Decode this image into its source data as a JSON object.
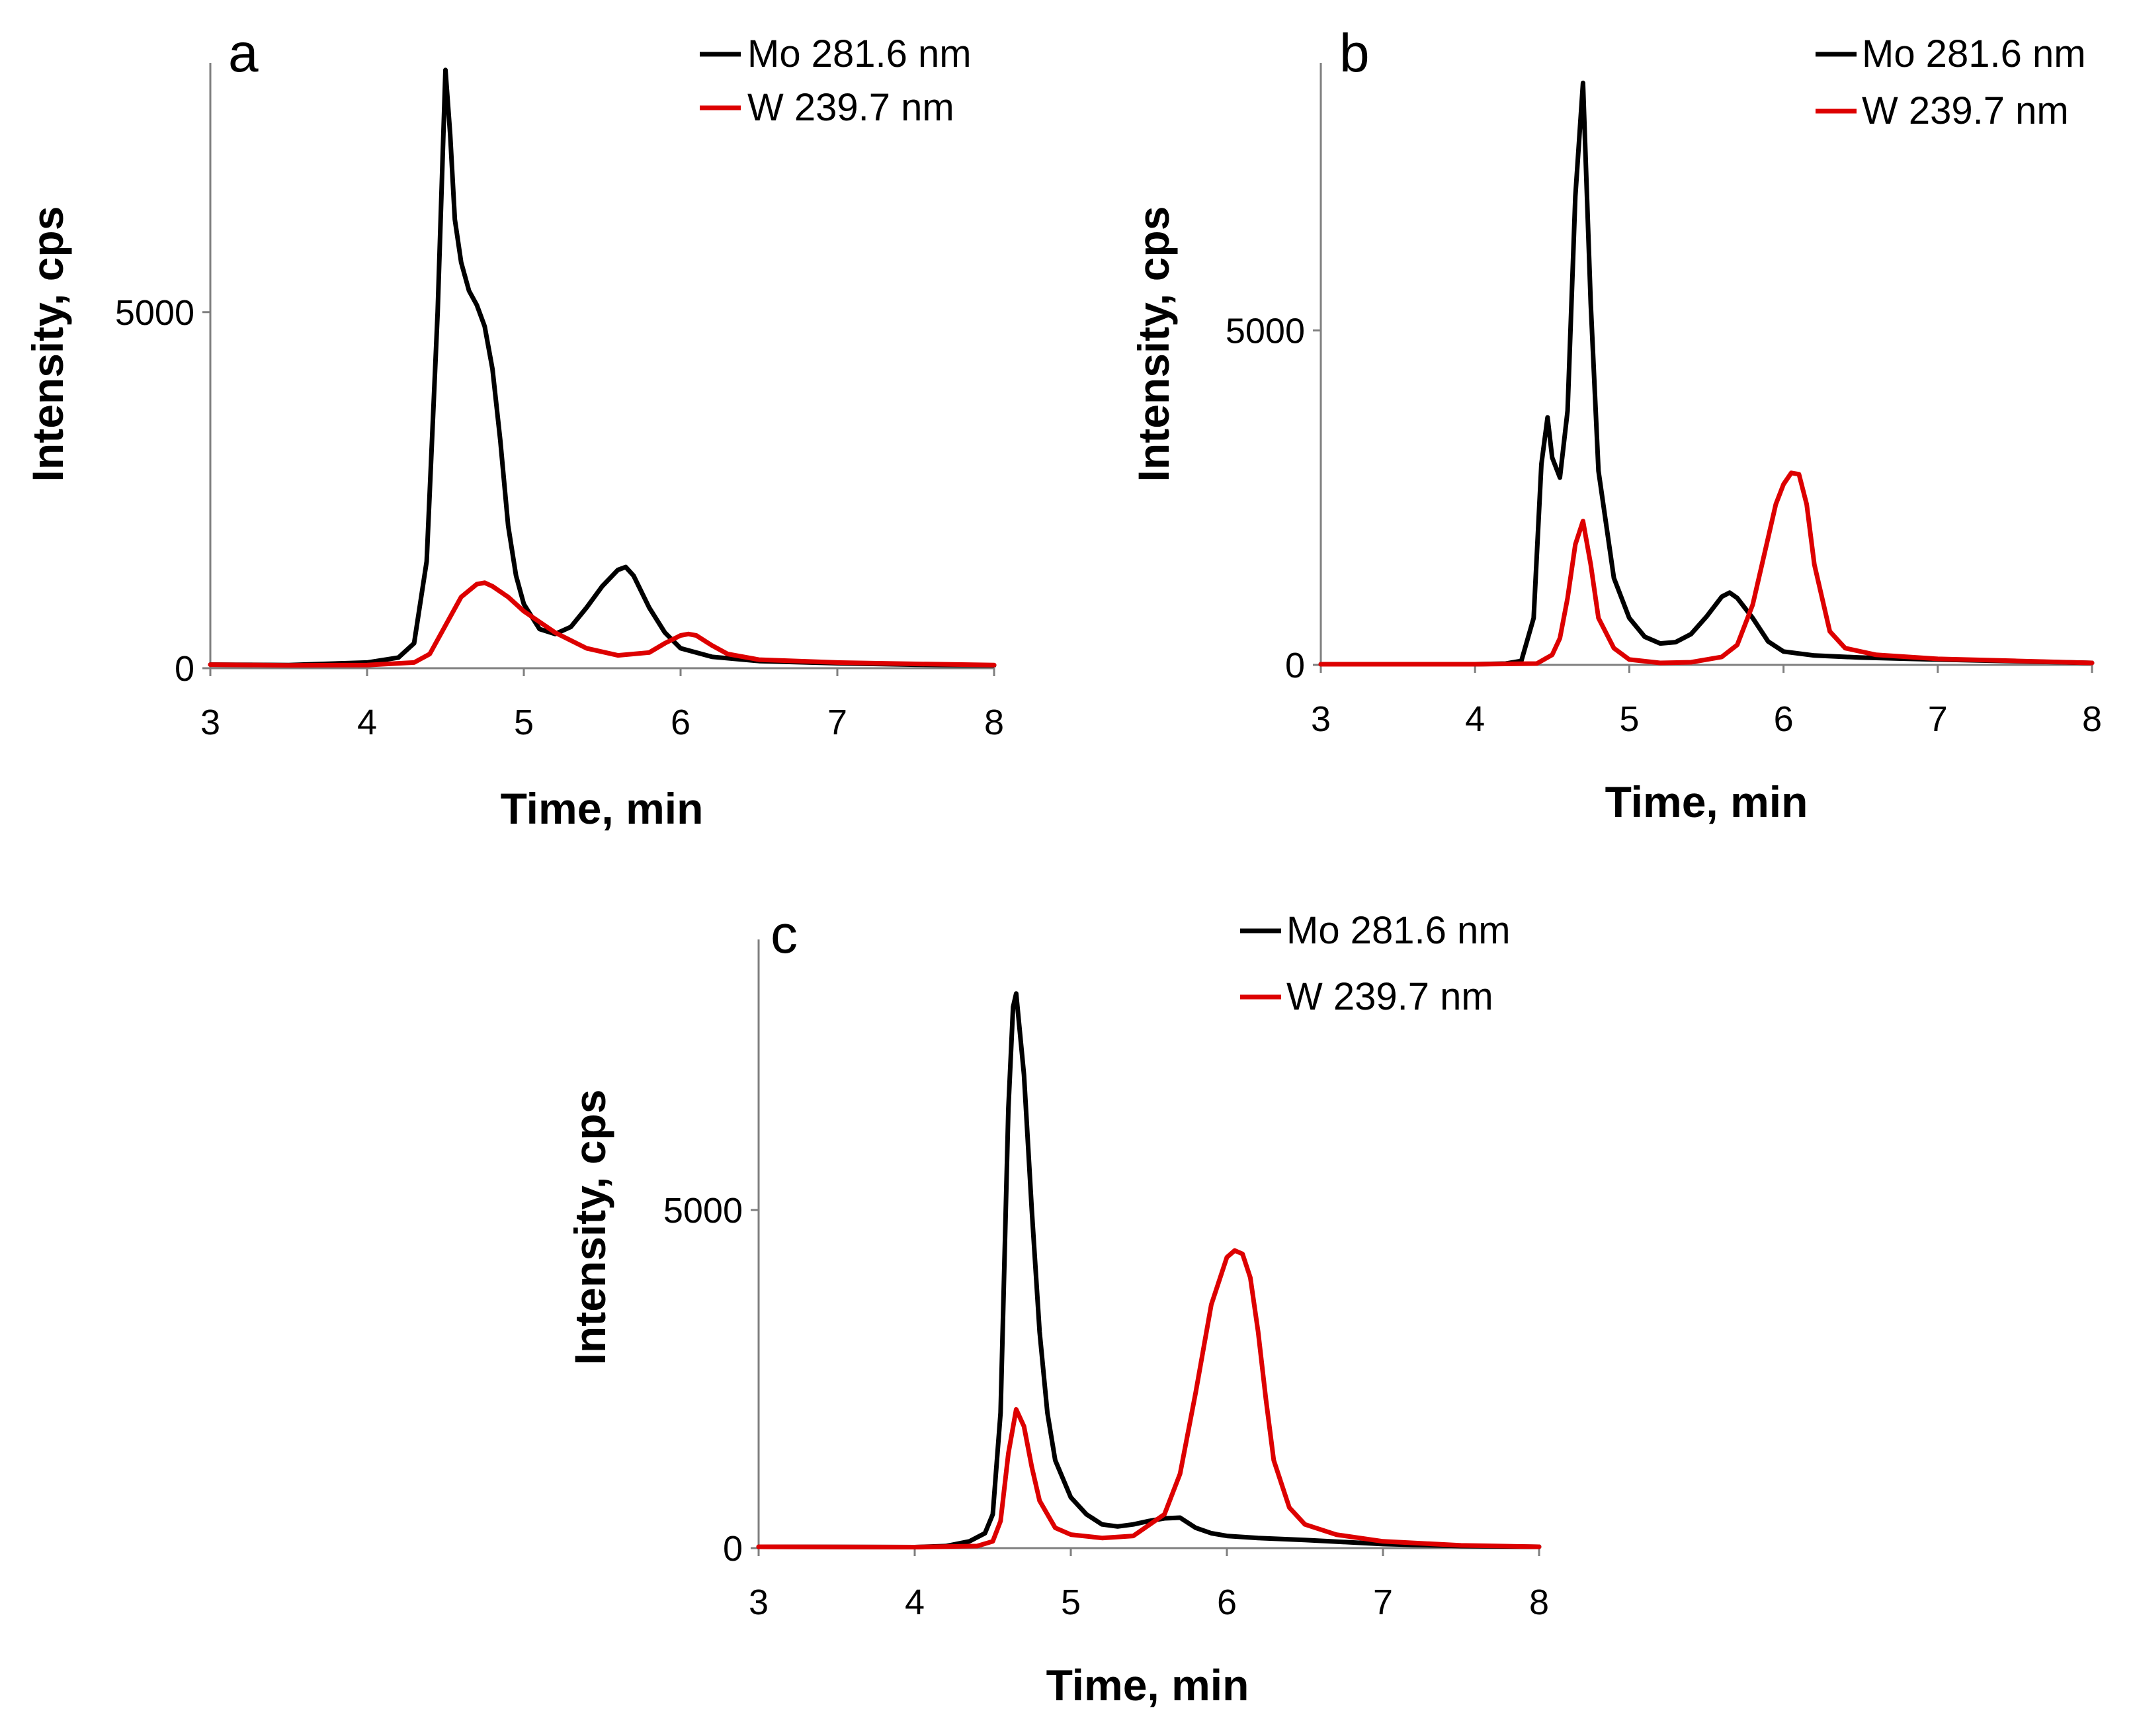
{
  "chart_data": [
    {
      "type": "line",
      "panel_label": "a",
      "xlabel": "Time, min",
      "ylabel": "Intensity, cps",
      "xlim": [
        3,
        8
      ],
      "ylim": [
        0,
        8500
      ],
      "x_ticks": [
        3,
        4,
        5,
        6,
        7,
        8
      ],
      "y_ticks": [
        0,
        5000
      ],
      "grid": false,
      "legend": "top-right",
      "series": [
        {
          "name": "Mo 281.6 nm",
          "color": "#000000",
          "x": [
            3.0,
            3.5,
            4.0,
            4.2,
            4.3,
            4.38,
            4.45,
            4.5,
            4.53,
            4.56,
            4.6,
            4.65,
            4.7,
            4.75,
            4.8,
            4.85,
            4.9,
            4.95,
            5.0,
            5.1,
            5.2,
            5.3,
            5.4,
            5.5,
            5.6,
            5.65,
            5.7,
            5.8,
            5.9,
            6.0,
            6.2,
            6.5,
            7.0,
            7.5,
            8.0
          ],
          "y": [
            50,
            45,
            80,
            150,
            350,
            1500,
            5000,
            8400,
            7500,
            6300,
            5700,
            5300,
            5100,
            4800,
            4200,
            3200,
            2000,
            1300,
            900,
            550,
            480,
            580,
            850,
            1150,
            1380,
            1420,
            1300,
            850,
            500,
            280,
            160,
            100,
            70,
            50,
            40
          ]
        },
        {
          "name": "W 239.7 nm",
          "color": "#dd0000",
          "x": [
            3.0,
            3.5,
            4.0,
            4.3,
            4.4,
            4.5,
            4.6,
            4.7,
            4.75,
            4.8,
            4.9,
            5.0,
            5.2,
            5.4,
            5.6,
            5.8,
            5.9,
            6.0,
            6.05,
            6.1,
            6.2,
            6.3,
            6.5,
            7.0,
            7.5,
            8.0
          ],
          "y": [
            50,
            40,
            45,
            80,
            200,
            600,
            1000,
            1180,
            1200,
            1150,
            1000,
            800,
            500,
            280,
            180,
            220,
            350,
            460,
            480,
            460,
            320,
            200,
            120,
            80,
            60,
            45
          ]
        }
      ]
    },
    {
      "type": "line",
      "panel_label": "b",
      "xlabel": "Time, min",
      "ylabel": "Intensity, cps",
      "xlim": [
        3,
        8
      ],
      "ylim": [
        0,
        9000
      ],
      "x_ticks": [
        3,
        4,
        5,
        6,
        7,
        8
      ],
      "y_ticks": [
        0,
        5000
      ],
      "grid": false,
      "legend": "top-right",
      "series": [
        {
          "name": "Mo 281.6 nm",
          "color": "#000000",
          "x": [
            3.0,
            4.0,
            4.2,
            4.3,
            4.38,
            4.43,
            4.47,
            4.5,
            4.55,
            4.6,
            4.65,
            4.7,
            4.75,
            4.8,
            4.9,
            5.0,
            5.1,
            5.2,
            5.3,
            5.4,
            5.5,
            5.6,
            5.65,
            5.7,
            5.8,
            5.9,
            6.0,
            6.2,
            6.5,
            7.0,
            8.0
          ],
          "y": [
            10,
            10,
            20,
            60,
            700,
            3000,
            3700,
            3100,
            2800,
            3800,
            7000,
            8700,
            5400,
            2900,
            1300,
            700,
            420,
            320,
            340,
            460,
            720,
            1020,
            1080,
            1000,
            700,
            350,
            200,
            140,
            110,
            80,
            30
          ]
        },
        {
          "name": "W 239.7 nm",
          "color": "#dd0000",
          "x": [
            3.0,
            4.0,
            4.4,
            4.5,
            4.55,
            4.6,
            4.65,
            4.7,
            4.75,
            4.8,
            4.9,
            5.0,
            5.2,
            5.4,
            5.6,
            5.7,
            5.8,
            5.9,
            5.95,
            6.0,
            6.05,
            6.1,
            6.15,
            6.2,
            6.3,
            6.4,
            6.6,
            7.0,
            7.5,
            8.0
          ],
          "y": [
            10,
            10,
            20,
            150,
            400,
            1000,
            1800,
            2150,
            1500,
            700,
            250,
            80,
            30,
            40,
            120,
            300,
            900,
            1900,
            2400,
            2700,
            2870,
            2850,
            2400,
            1500,
            500,
            250,
            150,
            90,
            60,
            30
          ]
        }
      ]
    },
    {
      "type": "line",
      "panel_label": "c",
      "xlabel": "Time, min",
      "ylabel": "Intensity, cps",
      "xlim": [
        3,
        8
      ],
      "ylim": [
        0,
        9000
      ],
      "x_ticks": [
        3,
        4,
        5,
        6,
        7,
        8
      ],
      "y_ticks": [
        0,
        5000
      ],
      "grid": false,
      "legend": "top-right",
      "series": [
        {
          "name": "Mo 281.6 nm",
          "color": "#000000",
          "x": [
            3.0,
            4.0,
            4.2,
            4.35,
            4.45,
            4.5,
            4.55,
            4.6,
            4.63,
            4.65,
            4.7,
            4.75,
            4.8,
            4.85,
            4.9,
            5.0,
            5.1,
            5.2,
            5.3,
            5.4,
            5.5,
            5.6,
            5.7,
            5.8,
            5.9,
            6.0,
            6.2,
            6.5,
            7.0,
            7.5,
            8.0
          ],
          "y": [
            20,
            15,
            30,
            100,
            220,
            500,
            2000,
            6500,
            8000,
            8200,
            7000,
            5000,
            3200,
            2000,
            1300,
            750,
            500,
            350,
            320,
            350,
            400,
            440,
            450,
            300,
            220,
            180,
            150,
            120,
            60,
            30,
            20
          ]
        },
        {
          "name": "W 239.7 nm",
          "color": "#dd0000",
          "x": [
            3.0,
            4.0,
            4.4,
            4.5,
            4.55,
            4.6,
            4.65,
            4.7,
            4.75,
            4.8,
            4.9,
            5.0,
            5.2,
            5.4,
            5.6,
            5.7,
            5.8,
            5.9,
            6.0,
            6.05,
            6.1,
            6.15,
            6.2,
            6.25,
            6.3,
            6.4,
            6.5,
            6.7,
            7.0,
            7.5,
            8.0
          ],
          "y": [
            20,
            15,
            30,
            100,
            400,
            1400,
            2050,
            1800,
            1200,
            700,
            300,
            200,
            150,
            180,
            500,
            1100,
            2300,
            3600,
            4300,
            4400,
            4350,
            4000,
            3200,
            2200,
            1300,
            600,
            350,
            200,
            100,
            40,
            20
          ]
        }
      ]
    }
  ]
}
